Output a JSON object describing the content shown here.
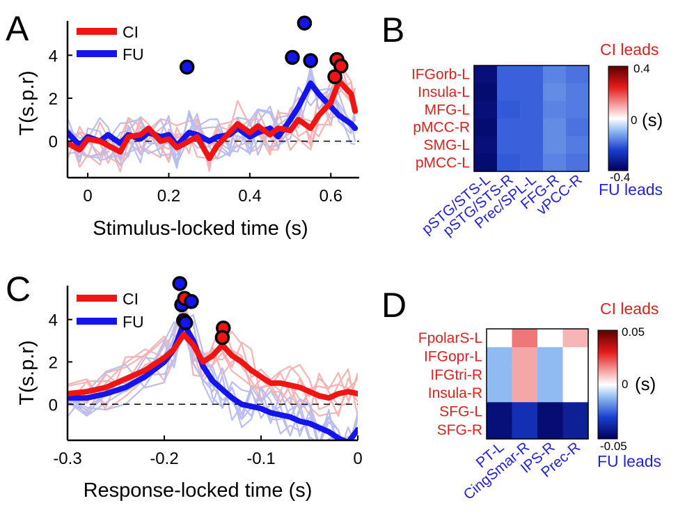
{
  "panels": {
    "A": "A",
    "B": "B",
    "C": "C",
    "D": "D"
  },
  "colors": {
    "ci": "#f01414",
    "fu": "#1414ee",
    "ci_light": "#f6b3b3",
    "fu_light": "#b9bdf0",
    "row_label": "#e0201b",
    "col_label": "#2222e0"
  },
  "chart_data": [
    {
      "id": "A",
      "type": "line",
      "xlabel": "Stimulus-locked time (s)",
      "ylabel": "T(s.p.r)",
      "xlim": [
        -0.05,
        0.67
      ],
      "ylim": [
        -1.7,
        5.6
      ],
      "xticks": [
        0,
        0.2,
        0.4,
        0.6
      ],
      "xtick_labels": [
        "0",
        "0.2",
        "0.4",
        "0.6"
      ],
      "yticks": [
        0,
        2,
        4
      ],
      "ytick_labels": [
        "0",
        "2",
        "4"
      ],
      "legend": [
        "CI",
        "FU"
      ],
      "legend_position": "top-left",
      "zero_line": true,
      "series": [
        {
          "name": "CI",
          "x": [
            -0.05,
            -0.02,
            0.0,
            0.03,
            0.05,
            0.08,
            0.1,
            0.13,
            0.15,
            0.18,
            0.2,
            0.22,
            0.25,
            0.27,
            0.3,
            0.32,
            0.35,
            0.37,
            0.4,
            0.42,
            0.45,
            0.47,
            0.5,
            0.52,
            0.55,
            0.57,
            0.6,
            0.62,
            0.65,
            0.66
          ],
          "values": [
            -0.1,
            -0.4,
            0.1,
            0.0,
            -0.2,
            -0.5,
            0.2,
            0.3,
            0.6,
            0.0,
            0.1,
            -0.3,
            0.0,
            0.2,
            -0.8,
            -0.2,
            0.4,
            0.8,
            0.4,
            0.7,
            0.3,
            0.6,
            0.5,
            1.0,
            0.6,
            1.2,
            1.8,
            2.8,
            2.2,
            1.4
          ]
        },
        {
          "name": "FU",
          "x": [
            -0.05,
            -0.02,
            0.0,
            0.03,
            0.05,
            0.08,
            0.1,
            0.13,
            0.15,
            0.18,
            0.2,
            0.22,
            0.25,
            0.27,
            0.3,
            0.32,
            0.35,
            0.37,
            0.4,
            0.42,
            0.45,
            0.47,
            0.5,
            0.52,
            0.55,
            0.57,
            0.6,
            0.62,
            0.65,
            0.66
          ],
          "values": [
            0.4,
            -0.2,
            0.2,
            0.0,
            0.3,
            -0.1,
            0.3,
            0.1,
            0.4,
            0.2,
            0.3,
            -0.2,
            0.4,
            0.3,
            0.0,
            0.2,
            0.3,
            0.6,
            0.2,
            0.4,
            0.6,
            0.2,
            1.0,
            1.6,
            2.7,
            2.2,
            1.6,
            1.2,
            0.8,
            0.6
          ]
        }
      ],
      "peaks": [
        {
          "series": "FU",
          "x": 0.245,
          "y": 3.45
        },
        {
          "series": "FU",
          "x": 0.505,
          "y": 3.9
        },
        {
          "series": "FU",
          "x": 0.535,
          "y": 5.5
        },
        {
          "series": "FU",
          "x": 0.55,
          "y": 3.75
        },
        {
          "series": "CI",
          "x": 0.61,
          "y": 3.0
        },
        {
          "series": "CI",
          "x": 0.615,
          "y": 3.8
        },
        {
          "series": "CI",
          "x": 0.625,
          "y": 3.5
        }
      ]
    },
    {
      "id": "B",
      "type": "heatmap",
      "rows": [
        "IFGorb-L",
        "Insula-L",
        "MFG-L",
        "pMCC-R",
        "SMG-L",
        "pMCC-L"
      ],
      "columns": [
        "pSTG/STS-L",
        "pSTG/STS-R",
        "Prec/SPL-L",
        "FFG-R",
        "vPCC-R"
      ],
      "values": [
        [
          -0.36,
          -0.2,
          -0.2,
          -0.16,
          -0.18
        ],
        [
          -0.37,
          -0.2,
          -0.2,
          -0.15,
          -0.17
        ],
        [
          -0.36,
          -0.21,
          -0.2,
          -0.16,
          -0.17
        ],
        [
          -0.37,
          -0.2,
          -0.2,
          -0.15,
          -0.18
        ],
        [
          -0.36,
          -0.2,
          -0.2,
          -0.15,
          -0.17
        ],
        [
          -0.37,
          -0.21,
          -0.2,
          -0.16,
          -0.18
        ]
      ],
      "clim": [
        -0.4,
        0.4
      ],
      "colorbar_ticks": [
        "0.4",
        "0",
        "-0.4"
      ],
      "colorbar_tick_values": [
        0.4,
        0,
        -0.4
      ],
      "colorbar_unit": "(s)",
      "top_label": "CI leads",
      "bottom_label": "FU leads"
    },
    {
      "id": "C",
      "type": "line",
      "xlabel": "Response-locked time (s)",
      "ylabel": "T(s.p.r)",
      "xlim": [
        -0.3,
        0.0
      ],
      "ylim": [
        -1.7,
        5.6
      ],
      "xticks": [
        -0.3,
        -0.2,
        -0.1,
        0
      ],
      "xtick_labels": [
        "-0.3",
        "-0.2",
        "-0.1",
        "0"
      ],
      "yticks": [
        0,
        2,
        4
      ],
      "ytick_labels": [
        "0",
        "2",
        "4"
      ],
      "legend": [
        "CI",
        "FU"
      ],
      "legend_position": "top-left",
      "zero_line": true,
      "series": [
        {
          "name": "CI",
          "x": [
            -0.3,
            -0.28,
            -0.26,
            -0.24,
            -0.22,
            -0.2,
            -0.19,
            -0.18,
            -0.17,
            -0.16,
            -0.15,
            -0.14,
            -0.13,
            -0.12,
            -0.11,
            -0.1,
            -0.09,
            -0.08,
            -0.07,
            -0.06,
            -0.05,
            -0.04,
            -0.03,
            -0.02,
            -0.01,
            0.0
          ],
          "values": [
            0.5,
            0.6,
            0.8,
            1.2,
            1.6,
            2.2,
            2.6,
            3.3,
            2.8,
            2.0,
            2.3,
            2.8,
            2.3,
            2.0,
            1.6,
            1.3,
            1.0,
            1.0,
            0.9,
            0.8,
            0.6,
            0.4,
            0.3,
            0.5,
            0.6,
            0.5
          ]
        },
        {
          "name": "FU",
          "x": [
            -0.3,
            -0.28,
            -0.26,
            -0.24,
            -0.22,
            -0.2,
            -0.19,
            -0.18,
            -0.17,
            -0.16,
            -0.15,
            -0.14,
            -0.13,
            -0.12,
            -0.11,
            -0.1,
            -0.09,
            -0.08,
            -0.07,
            -0.06,
            -0.05,
            -0.04,
            -0.03,
            -0.02,
            -0.01,
            0.0
          ],
          "values": [
            0.3,
            0.3,
            0.5,
            0.8,
            1.3,
            2.0,
            2.6,
            3.8,
            3.0,
            1.8,
            1.1,
            0.7,
            0.3,
            0.0,
            -0.1,
            -0.2,
            -0.4,
            -0.5,
            -0.6,
            -0.8,
            -0.9,
            -1.1,
            -1.3,
            -1.6,
            -1.8,
            -1.2
          ]
        }
      ],
      "peaks": [
        {
          "series": "FU",
          "x": -0.184,
          "y": 5.7
        },
        {
          "series": "FU",
          "x": -0.182,
          "y": 4.7
        },
        {
          "series": "CI",
          "x": -0.179,
          "y": 5.0
        },
        {
          "series": "FU",
          "x": -0.172,
          "y": 4.85
        },
        {
          "series": "FU",
          "x": -0.18,
          "y": 3.95
        },
        {
          "series": "FU",
          "x": -0.178,
          "y": 3.85
        },
        {
          "series": "CI",
          "x": -0.139,
          "y": 3.6
        },
        {
          "series": "CI",
          "x": -0.14,
          "y": 3.15
        }
      ]
    },
    {
      "id": "D",
      "type": "heatmap",
      "rows": [
        "FpolarS-L",
        "IFGopr-L",
        "IFGtri-R",
        "Insula-R",
        "SFG-L",
        "SFG-R"
      ],
      "columns": [
        "PT-L",
        "CingSmar-R",
        "IPS-R",
        "Prec-R"
      ],
      "values": [
        [
          0.0,
          0.018,
          0.0,
          0.01
        ],
        [
          -0.012,
          0.012,
          -0.012,
          0.0
        ],
        [
          -0.012,
          0.012,
          -0.012,
          0.0
        ],
        [
          -0.012,
          0.012,
          -0.012,
          0.0
        ],
        [
          -0.045,
          -0.035,
          -0.046,
          -0.04
        ],
        [
          -0.045,
          -0.035,
          -0.046,
          -0.04
        ]
      ],
      "clim": [
        -0.05,
        0.05
      ],
      "colorbar_ticks": [
        "0.05",
        "0",
        "-0.05"
      ],
      "colorbar_tick_values": [
        0.05,
        0,
        -0.05
      ],
      "colorbar_unit": "(s)",
      "top_label": "CI leads",
      "bottom_label": "FU leads"
    }
  ]
}
